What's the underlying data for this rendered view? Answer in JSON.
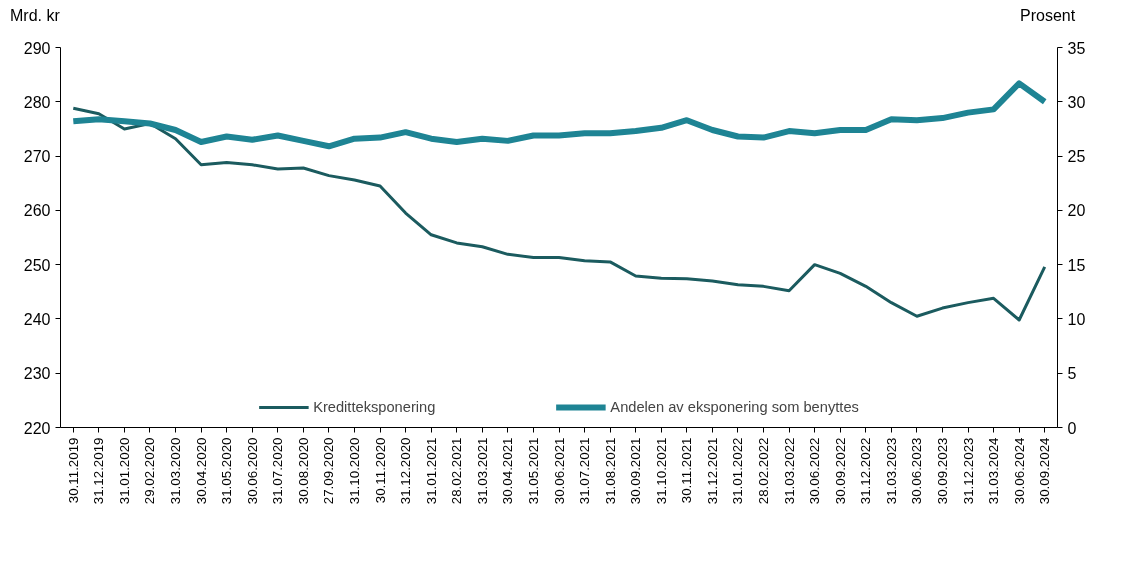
{
  "chart_data": {
    "type": "line",
    "ylabel": "Mrd. kr",
    "y2label": "Prosent",
    "categories": [
      "30.11.2019",
      "31.12.2019",
      "31.01.2020",
      "29.02.2020",
      "31.03.2020",
      "30.04.2020",
      "31.05.2020",
      "30.06.2020",
      "31.07.2020",
      "30.08.2020",
      "27.09.2020",
      "31.10.2020",
      "30.11.2020",
      "31.12.2020",
      "31.01.2021",
      "28.02.2021",
      "31.03.2021",
      "30.04.2021",
      "31.05.2021",
      "30.06.2021",
      "31.07.2021",
      "31.08.2021",
      "30.09.2021",
      "31.10.2021",
      "30.11.2021",
      "31.12.2021",
      "31.01.2022",
      "28.02.2022",
      "31.03.2022",
      "30.06.2022",
      "30.09.2022",
      "31.12.2022",
      "31.03.2023",
      "30.06.2023",
      "30.09.2023",
      "31.12.2023",
      "31.03.2024",
      "30.06.2024",
      "30.09.2024"
    ],
    "series": [
      {
        "name": "Kreditteksponering",
        "color": "#1b5b5f",
        "values": [
          278.8,
          277.8,
          275,
          276,
          273.2,
          268.4,
          268.8,
          268.4,
          267.6,
          267.8,
          266.4,
          265.6,
          264.5,
          259.5,
          255.5,
          254,
          253.3,
          251.9,
          251.3,
          251.3,
          250.7,
          250.5,
          247.9,
          247.5,
          247.4,
          247,
          246.3,
          246,
          245.2,
          250,
          248.4,
          246,
          243,
          240.5,
          242,
          243,
          243.8,
          239.8,
          249.6
        ]
      },
      {
        "name": "Andelen av eksponering som benyttes",
        "color": "#1e8494",
        "axis": "y2",
        "values": [
          28.2,
          28.4,
          28.2,
          28.0,
          27.4,
          26.3,
          26.8,
          26.5,
          26.9,
          26.4,
          25.9,
          26.6,
          26.7,
          27.2,
          26.6,
          26.3,
          26.6,
          26.4,
          26.9,
          26.9,
          27.1,
          27.1,
          27.3,
          27.6,
          28.3,
          27.4,
          26.8,
          26.7,
          27.3,
          27.1,
          27.4,
          27.4,
          28.4,
          28.3,
          28.5,
          29.0,
          29.3,
          31.7,
          30.0
        ]
      }
    ],
    "ylim": [
      220,
      290
    ],
    "yticks": [
      220,
      230,
      240,
      250,
      260,
      270,
      280,
      290
    ],
    "y2lim": [
      0,
      35
    ],
    "y2ticks": [
      0,
      5,
      10,
      15,
      20,
      25,
      30,
      35
    ],
    "grid": false,
    "legend": "bottom",
    "marker": "none",
    "line_style": "solid"
  }
}
